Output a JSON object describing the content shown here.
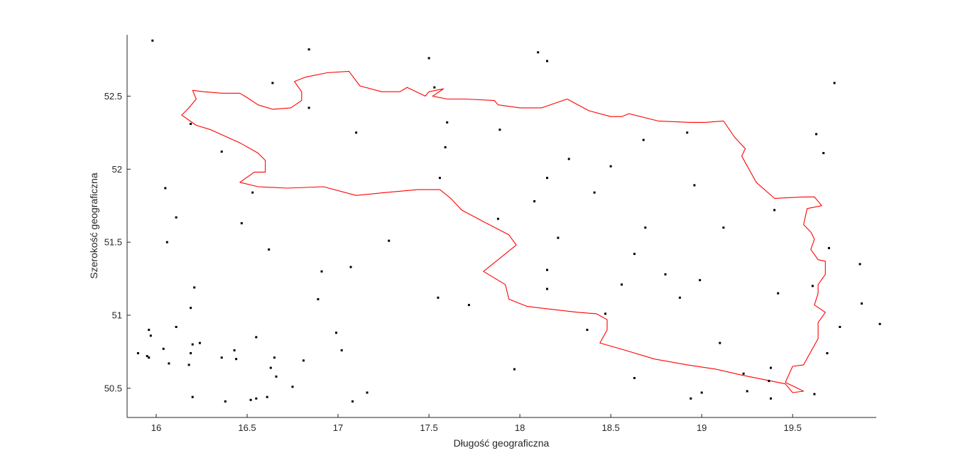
{
  "chart_data": {
    "type": "scatter",
    "title": "",
    "xlabel": "Długość geograficzna",
    "ylabel": "Szerokość geograficzna",
    "xlim": [
      15.84,
      19.96
    ],
    "ylim": [
      50.3,
      52.92
    ],
    "xticks": [
      16,
      16.5,
      17,
      17.5,
      18,
      18.5,
      19,
      19.5
    ],
    "xtick_labels": [
      "16",
      "16.5",
      "17",
      "17.5",
      "18",
      "18.5",
      "19",
      "19.5"
    ],
    "yticks": [
      50.5,
      51,
      51.5,
      52,
      52.5
    ],
    "ytick_labels": [
      "50.5",
      "51",
      "51.5",
      "52",
      "52.5"
    ],
    "grid": false,
    "legend": "none",
    "colors": {
      "points": "#000000",
      "boundary": "#ff0000",
      "axis": "#262626"
    },
    "series": [
      {
        "kind": "points",
        "x": [
          15.98,
          16.84,
          17.5,
          18.1,
          18.15,
          16.64,
          16.84,
          17.53,
          17.6,
          19.73,
          16.19,
          17.1,
          17.89,
          16.36,
          17.59,
          18.68,
          18.92,
          18.27,
          19.63,
          19.67,
          18.5,
          16.05,
          17.56,
          18.15,
          18.96,
          16.53,
          18.41,
          18.08,
          19.4,
          16.11,
          17.88,
          16.47,
          18.69,
          19.12,
          16.06,
          17.28,
          18.21,
          16.62,
          19.7,
          18.63,
          19.87,
          17.07,
          18.15,
          16.91,
          18.8,
          18.99,
          16.21,
          18.56,
          19.61,
          18.15,
          17.55,
          19.42,
          18.88,
          16.89,
          17.72,
          19.88,
          16.19,
          18.47,
          19.76,
          19.98,
          16.11,
          18.37,
          15.96,
          16.99,
          16.55,
          15.97,
          16.2,
          16.24,
          19.1,
          16.04,
          16.43,
          17.02,
          16.19,
          15.9,
          19.69,
          15.95,
          15.96,
          16.36,
          16.44,
          16.65,
          16.81,
          16.07,
          16.18,
          19.38,
          16.63,
          17.97,
          19.23,
          16.66,
          18.63,
          19.37,
          16.75,
          19.25,
          17.16,
          19.0,
          19.62,
          16.2,
          16.61,
          16.55,
          16.52,
          17.08,
          16.38,
          18.94,
          19.38
        ],
        "y": [
          52.88,
          52.82,
          52.76,
          52.8,
          52.74,
          52.59,
          52.42,
          52.56,
          52.32,
          52.59,
          52.31,
          52.25,
          52.27,
          52.12,
          52.15,
          52.2,
          52.25,
          52.07,
          52.24,
          52.11,
          52.02,
          51.87,
          51.94,
          51.94,
          51.89,
          51.84,
          51.84,
          51.78,
          51.72,
          51.67,
          51.66,
          51.63,
          51.6,
          51.6,
          51.5,
          51.51,
          51.53,
          51.45,
          51.46,
          51.42,
          51.35,
          51.33,
          51.31,
          51.3,
          51.28,
          51.24,
          51.19,
          51.21,
          51.2,
          51.18,
          51.12,
          51.15,
          51.12,
          51.11,
          51.07,
          51.08,
          51.05,
          51.01,
          50.92,
          50.94,
          50.92,
          50.9,
          50.9,
          50.88,
          50.85,
          50.86,
          50.8,
          50.81,
          50.81,
          50.77,
          50.76,
          50.76,
          50.74,
          50.74,
          50.74,
          50.72,
          50.71,
          50.71,
          50.7,
          50.71,
          50.69,
          50.67,
          50.66,
          50.64,
          50.64,
          50.63,
          50.6,
          50.58,
          50.57,
          50.55,
          50.51,
          50.48,
          50.47,
          50.47,
          50.46,
          50.44,
          50.44,
          50.43,
          50.42,
          50.41,
          50.41,
          50.43,
          50.43
        ]
      },
      {
        "kind": "boundary",
        "x": [
          16.2,
          16.26,
          16.36,
          16.46,
          16.5,
          16.56,
          16.64,
          16.74,
          16.8,
          16.8,
          16.76,
          16.82,
          16.94,
          17.06,
          17.12,
          17.24,
          17.34,
          17.38,
          17.48,
          17.5,
          17.58,
          17.52,
          17.6,
          17.7,
          17.86,
          17.88,
          18.0,
          18.12,
          18.26,
          18.38,
          18.5,
          18.56,
          18.6,
          18.76,
          18.94,
          19.02,
          19.12,
          19.18,
          19.24,
          19.22,
          19.3,
          19.4,
          19.56,
          19.62,
          19.66,
          19.58,
          19.56,
          19.6,
          19.62,
          19.6,
          19.64,
          19.68,
          19.68,
          19.64,
          19.64,
          19.62,
          19.68,
          19.64,
          19.64,
          19.56,
          19.5,
          19.46,
          19.56,
          19.5,
          19.46,
          19.38,
          19.22,
          19.08,
          18.92,
          18.74,
          18.58,
          18.44,
          18.48,
          18.48,
          18.42,
          18.32,
          18.18,
          18.04,
          17.94,
          17.92,
          17.8,
          17.88,
          17.98,
          17.94,
          17.8,
          17.68,
          17.62,
          17.6,
          17.56,
          17.44,
          17.26,
          17.1,
          16.92,
          16.72,
          16.56,
          16.46,
          16.54,
          16.6,
          16.6,
          16.56,
          16.46,
          16.3,
          16.22,
          16.14,
          16.18,
          16.22,
          16.2
        ],
        "y": [
          52.54,
          52.53,
          52.52,
          52.52,
          52.49,
          52.44,
          52.41,
          52.42,
          52.47,
          52.53,
          52.6,
          52.63,
          52.66,
          52.67,
          52.57,
          52.53,
          52.53,
          52.56,
          52.5,
          52.53,
          52.55,
          52.5,
          52.48,
          52.48,
          52.47,
          52.44,
          52.42,
          52.42,
          52.48,
          52.4,
          52.36,
          52.36,
          52.38,
          52.33,
          52.32,
          52.32,
          52.33,
          52.22,
          52.14,
          52.09,
          51.91,
          51.8,
          51.81,
          51.81,
          51.75,
          51.73,
          51.62,
          51.57,
          51.52,
          51.45,
          51.38,
          51.37,
          51.28,
          51.21,
          51.15,
          51.07,
          51.02,
          50.95,
          50.84,
          50.66,
          50.65,
          50.54,
          50.48,
          50.47,
          50.53,
          50.55,
          50.59,
          50.63,
          50.66,
          50.7,
          50.76,
          50.81,
          50.9,
          50.97,
          51.01,
          51.02,
          51.04,
          51.06,
          51.11,
          51.21,
          51.3,
          51.38,
          51.48,
          51.55,
          51.64,
          51.72,
          51.8,
          51.82,
          51.86,
          51.86,
          51.84,
          51.82,
          51.88,
          51.87,
          51.88,
          51.91,
          51.98,
          51.98,
          52.06,
          52.11,
          52.18,
          52.27,
          52.3,
          52.37,
          52.42,
          52.48,
          52.54
        ]
      }
    ]
  }
}
